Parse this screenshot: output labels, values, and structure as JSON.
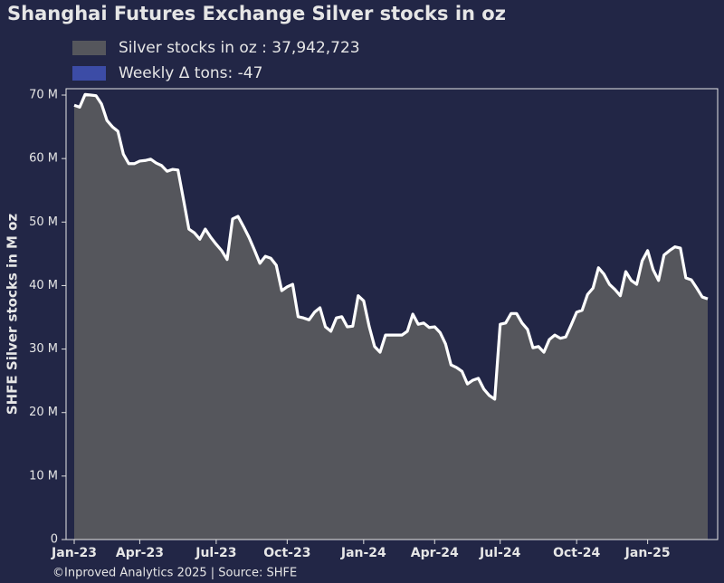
{
  "chart_data": {
    "type": "area",
    "title": "Shanghai Futures Exchange Silver stocks in oz",
    "y_label": "SHFE Silver stocks in M oz",
    "footer": "©Inproved Analytics 2025 | Source: SHFE",
    "categories": [
      "Jan-23",
      null,
      null,
      null,
      null,
      null,
      null,
      null,
      null,
      null,
      null,
      null,
      "Apr-23",
      null,
      null,
      null,
      null,
      null,
      null,
      null,
      null,
      null,
      null,
      null,
      null,
      null,
      "Jul-23",
      null,
      null,
      null,
      null,
      null,
      null,
      null,
      null,
      null,
      null,
      null,
      null,
      "Oct-23",
      null,
      null,
      null,
      null,
      null,
      null,
      null,
      null,
      null,
      null,
      null,
      null,
      null,
      "Jan-24",
      null,
      null,
      null,
      null,
      null,
      null,
      null,
      null,
      null,
      null,
      null,
      null,
      "Apr-24",
      null,
      null,
      null,
      null,
      null,
      null,
      null,
      null,
      null,
      null,
      null,
      "Jul-24",
      null,
      null,
      null,
      null,
      null,
      null,
      null,
      null,
      null,
      null,
      null,
      null,
      null,
      "Oct-24",
      null,
      null,
      null,
      null,
      null,
      null,
      null,
      null,
      null,
      null,
      null,
      null,
      "Jan-25",
      null,
      null,
      null,
      null,
      null,
      null,
      null,
      null,
      null,
      null,
      null
    ],
    "series": [
      {
        "name": "Silver stocks in oz : 37,942,723",
        "color": "#55565c",
        "line_color": "#ffffff",
        "values": [
          68.4,
          68.1,
          70.1,
          70.0,
          69.9,
          68.6,
          66.0,
          65.0,
          64.3,
          60.7,
          59.2,
          59.2,
          59.6,
          59.7,
          59.9,
          59.3,
          58.9,
          58.0,
          58.3,
          58.2,
          53.6,
          48.9,
          48.3,
          47.3,
          48.9,
          47.6,
          46.5,
          45.5,
          44.1,
          50.5,
          50.9,
          49.3,
          47.6,
          45.6,
          43.5,
          44.6,
          44.3,
          43.2,
          39.2,
          39.8,
          40.2,
          35.1,
          34.9,
          34.6,
          35.8,
          36.5,
          33.5,
          32.8,
          34.9,
          35.1,
          33.5,
          33.6,
          38.4,
          37.6,
          33.6,
          30.4,
          29.5,
          32.2,
          32.2,
          32.2,
          32.2,
          32.8,
          35.5,
          33.9,
          34.1,
          33.4,
          33.5,
          32.6,
          30.8,
          27.5,
          27.1,
          26.5,
          24.5,
          25.1,
          25.4,
          23.7,
          22.7,
          22.1,
          33.9,
          34.1,
          35.6,
          35.6,
          34.1,
          33.1,
          30.2,
          30.4,
          29.5,
          31.5,
          32.2,
          31.7,
          31.9,
          33.8,
          35.8,
          36.1,
          38.6,
          39.6,
          42.8,
          41.8,
          40.2,
          39.4,
          38.4,
          42.2,
          40.8,
          40.2,
          43.9,
          45.5,
          42.5,
          40.8,
          44.8,
          45.5,
          46.1,
          45.9,
          41.2,
          40.9,
          39.6,
          38.2,
          37.9
        ]
      }
    ],
    "extra_legend": {
      "name": "Weekly Δ tons: -47",
      "color": "#3c4ca6"
    },
    "ylim": [
      0,
      71
    ],
    "yticks": [
      0,
      {
        "value": 10,
        "label": "10 M"
      },
      {
        "value": 20,
        "label": "20 M"
      },
      {
        "value": 30,
        "label": "30 M"
      },
      {
        "value": 40,
        "label": "40 M"
      },
      {
        "value": 50,
        "label": "50 M"
      },
      {
        "value": 60,
        "label": "60 M"
      },
      {
        "value": 70,
        "label": "70 M"
      }
    ],
    "grid": false
  }
}
